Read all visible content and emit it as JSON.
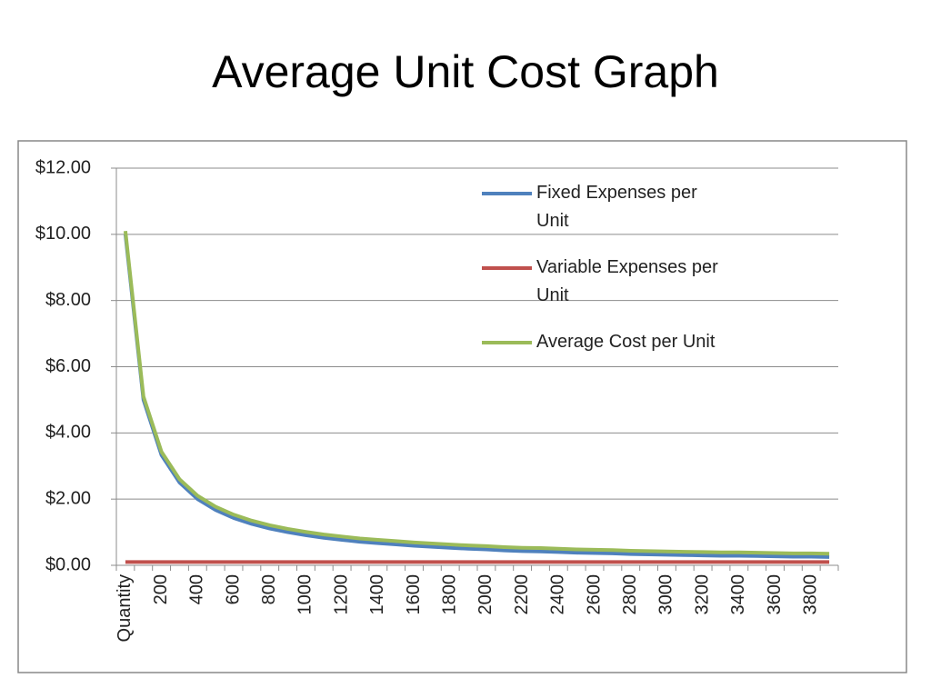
{
  "chart_data": {
    "type": "line",
    "title": "Average Unit Cost Graph",
    "categories": [
      "Quantity",
      null,
      "200",
      null,
      "400",
      null,
      "600",
      null,
      "800",
      null,
      "1000",
      null,
      "1200",
      null,
      "1400",
      null,
      "1600",
      null,
      "1800",
      null,
      "2000",
      null,
      "2200",
      null,
      "2400",
      null,
      "2600",
      null,
      "2800",
      null,
      "3000",
      null,
      "3200",
      null,
      "3400",
      null,
      "3600",
      null,
      "3800",
      null
    ],
    "series": [
      {
        "name": "Fixed Expenses per Unit",
        "color": "#4f81bd",
        "values": [
          10,
          5,
          3.33,
          2.5,
          2,
          1.67,
          1.43,
          1.25,
          1.11,
          1,
          0.91,
          0.83,
          0.77,
          0.71,
          0.67,
          0.63,
          0.59,
          0.56,
          0.53,
          0.5,
          0.48,
          0.45,
          0.43,
          0.42,
          0.4,
          0.38,
          0.37,
          0.36,
          0.34,
          0.33,
          0.32,
          0.31,
          0.3,
          0.29,
          0.29,
          0.28,
          0.27,
          0.26,
          0.26,
          0.25
        ]
      },
      {
        "name": "Variable Expenses per Unit",
        "color": "#c0504d",
        "values": [
          0.1,
          0.1,
          0.1,
          0.1,
          0.1,
          0.1,
          0.1,
          0.1,
          0.1,
          0.1,
          0.1,
          0.1,
          0.1,
          0.1,
          0.1,
          0.1,
          0.1,
          0.1,
          0.1,
          0.1,
          0.1,
          0.1,
          0.1,
          0.1,
          0.1,
          0.1,
          0.1,
          0.1,
          0.1,
          0.1,
          0.1,
          0.1,
          0.1,
          0.1,
          0.1,
          0.1,
          0.1,
          0.1,
          0.1,
          0.1
        ]
      },
      {
        "name": "Average Cost per Unit",
        "color": "#9bbb59",
        "values": [
          10.1,
          5.1,
          3.43,
          2.6,
          2.1,
          1.77,
          1.53,
          1.35,
          1.21,
          1.1,
          1.01,
          0.93,
          0.87,
          0.81,
          0.77,
          0.73,
          0.69,
          0.66,
          0.63,
          0.6,
          0.58,
          0.55,
          0.53,
          0.52,
          0.5,
          0.48,
          0.47,
          0.46,
          0.44,
          0.43,
          0.42,
          0.41,
          0.4,
          0.39,
          0.39,
          0.38,
          0.37,
          0.36,
          0.36,
          0.35
        ]
      }
    ],
    "ylim": [
      0,
      12
    ],
    "yticks": [
      {
        "value": 0,
        "label": "$0.00"
      },
      {
        "value": 2,
        "label": "$2.00"
      },
      {
        "value": 4,
        "label": "$4.00"
      },
      {
        "value": 6,
        "label": "$6.00"
      },
      {
        "value": 8,
        "label": "$8.00"
      },
      {
        "value": 10,
        "label": "$10.00"
      },
      {
        "value": 12,
        "label": "$12.00"
      }
    ],
    "grid": true,
    "legend": "top-right"
  }
}
